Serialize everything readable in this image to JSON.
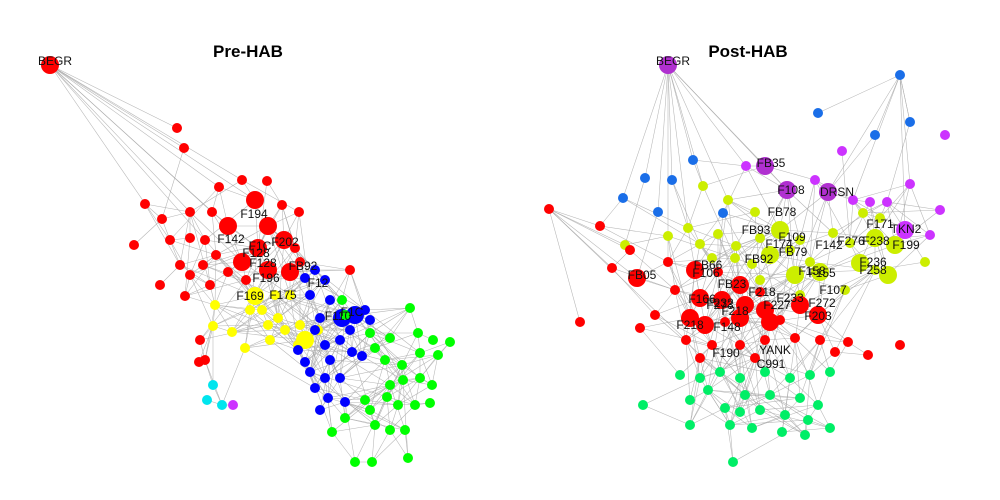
{
  "panels": [
    {
      "title": "Pre-HAB",
      "labels": [
        "BEGR",
        "F194",
        "F142",
        "F128",
        "F202",
        "F1C",
        "F128",
        "FB92",
        "F196",
        "F175",
        "F169",
        "F12",
        "F110",
        "F1C"
      ]
    },
    {
      "title": "Post-HAB",
      "labels": [
        "BEGR",
        "FB35",
        "F108",
        "DRSN",
        "FB78",
        "F171",
        "TKN2",
        "FB93",
        "F109",
        "F174",
        "F142",
        "F276",
        "F238",
        "F199",
        "FB66",
        "FB92",
        "FB79",
        "FB05",
        "F106",
        "F158",
        "F155",
        "FB23",
        "F236",
        "F258",
        "F166",
        "F232",
        "F218",
        "F233",
        "F107",
        "F272",
        "F218",
        "F273",
        "F218",
        "F227",
        "F203",
        "F148",
        "F190",
        "YANK",
        "C991"
      ]
    }
  ],
  "colors": {
    "edge": "#a8a8a8",
    "red": "#ff0000",
    "blue": "#0000ff",
    "green": "#00ff00",
    "yellow": "#ffff00",
    "cyan": "#00e5ee",
    "magenta": "#cc33ff",
    "purple": "#b030d0",
    "lightblue": "#1a6ee8",
    "lime": "#ccee00",
    "spring": "#00ee66"
  }
}
